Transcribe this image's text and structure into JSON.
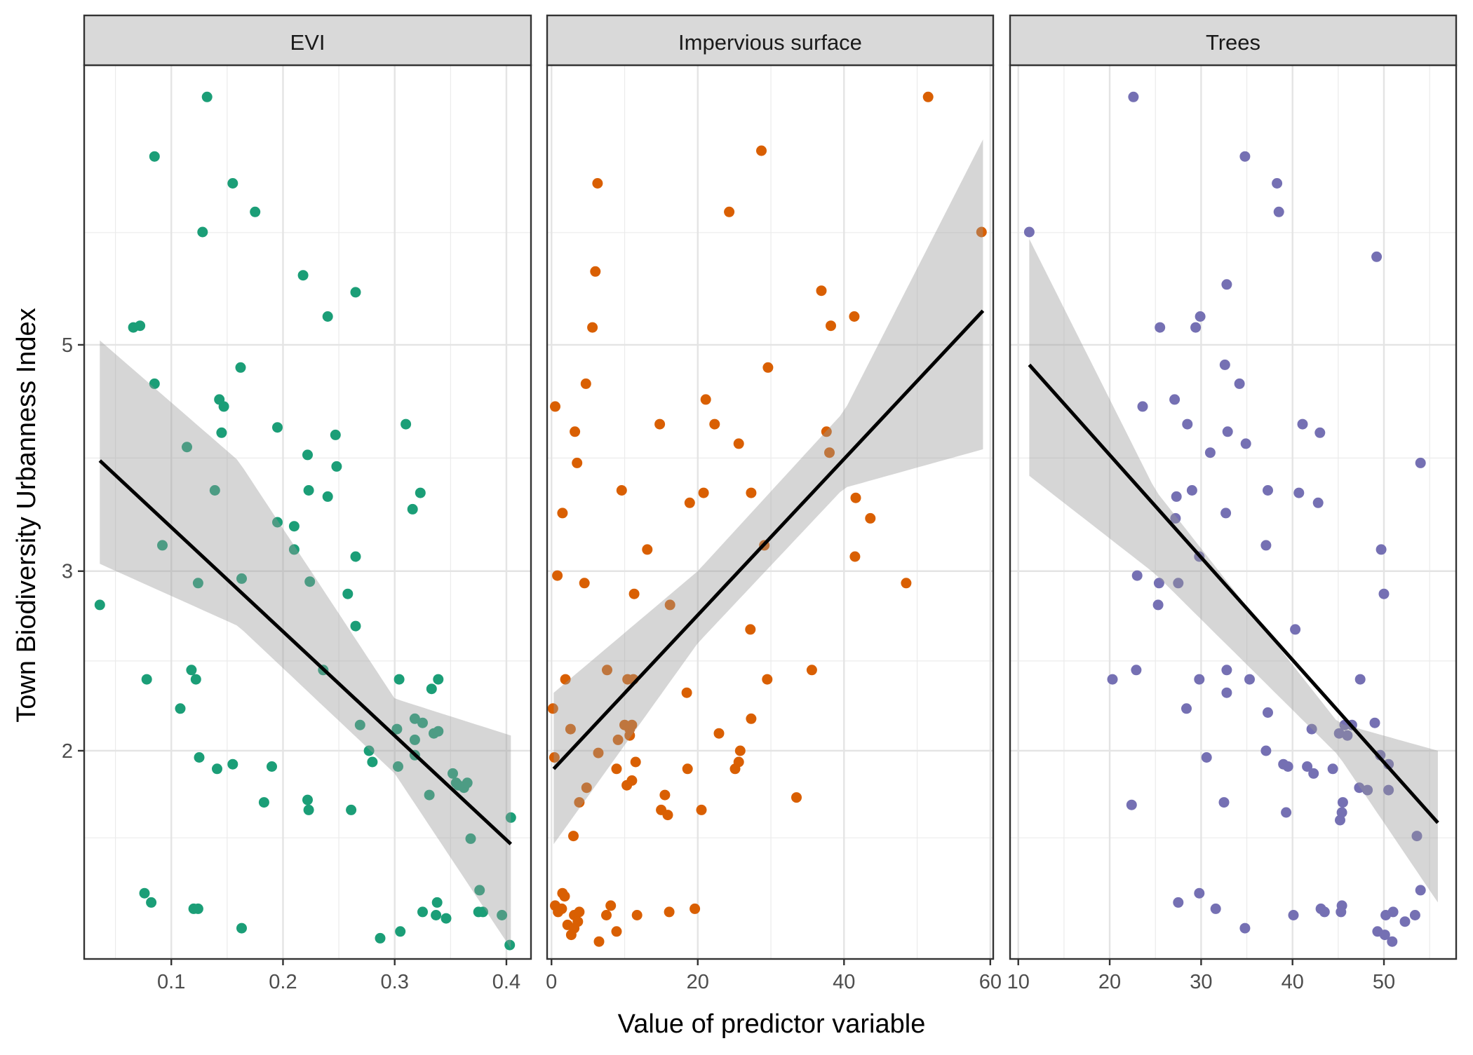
{
  "chart_data": {
    "type": "scatter",
    "ylabel": "Town Biodiversity Urbanness Index",
    "xlabel": "Value of predictor variable",
    "y_scale": "log",
    "y_ticks": [
      2,
      3,
      5
    ],
    "ylim": [
      1.25,
      9.4
    ],
    "grid": true,
    "panels": [
      {
        "title": "EVI",
        "color": "#1b9e77",
        "xlim": [
          0.022,
          0.422
        ],
        "x_ticks": [
          0.1,
          0.2,
          0.3,
          0.4
        ],
        "x_tick_labels": [
          "0.1",
          "0.2",
          "0.3",
          "0.4"
        ],
        "fit_line": [
          [
            0.036,
            3.85
          ],
          [
            0.404,
            1.62
          ]
        ],
        "ci_band": [
          [
            0.036,
            5.05,
            3.05
          ],
          [
            0.16,
            3.85,
            2.65
          ],
          [
            0.3,
            2.25,
            1.9
          ],
          [
            0.404,
            2.07,
            1.28
          ]
        ],
        "points": [
          [
            0.036,
            2.78
          ],
          [
            0.085,
            7.65
          ],
          [
            0.132,
            8.75
          ],
          [
            0.155,
            7.2
          ],
          [
            0.175,
            6.75
          ],
          [
            0.128,
            6.45
          ],
          [
            0.218,
            5.85
          ],
          [
            0.265,
            5.63
          ],
          [
            0.066,
            5.2
          ],
          [
            0.072,
            5.22
          ],
          [
            0.24,
            5.33
          ],
          [
            0.085,
            4.58
          ],
          [
            0.162,
            4.75
          ],
          [
            0.143,
            4.42
          ],
          [
            0.147,
            4.35
          ],
          [
            0.114,
            3.97
          ],
          [
            0.145,
            4.1
          ],
          [
            0.195,
            4.15
          ],
          [
            0.247,
            4.08
          ],
          [
            0.31,
            4.18
          ],
          [
            0.222,
            3.9
          ],
          [
            0.248,
            3.8
          ],
          [
            0.139,
            3.6
          ],
          [
            0.223,
            3.6
          ],
          [
            0.24,
            3.55
          ],
          [
            0.323,
            3.58
          ],
          [
            0.316,
            3.45
          ],
          [
            0.195,
            3.35
          ],
          [
            0.21,
            3.32
          ],
          [
            0.265,
            3.1
          ],
          [
            0.092,
            3.18
          ],
          [
            0.21,
            3.15
          ],
          [
            0.163,
            2.95
          ],
          [
            0.124,
            2.92
          ],
          [
            0.224,
            2.93
          ],
          [
            0.258,
            2.85
          ],
          [
            0.265,
            2.65
          ],
          [
            0.078,
            2.35
          ],
          [
            0.118,
            2.4
          ],
          [
            0.122,
            2.35
          ],
          [
            0.236,
            2.4
          ],
          [
            0.304,
            2.35
          ],
          [
            0.339,
            2.35
          ],
          [
            0.333,
            2.3
          ],
          [
            0.108,
            2.2
          ],
          [
            0.269,
            2.12
          ],
          [
            0.302,
            2.1
          ],
          [
            0.318,
            2.15
          ],
          [
            0.325,
            2.13
          ],
          [
            0.335,
            2.08
          ],
          [
            0.318,
            2.05
          ],
          [
            0.339,
            2.09
          ],
          [
            0.125,
            1.97
          ],
          [
            0.155,
            1.94
          ],
          [
            0.141,
            1.92
          ],
          [
            0.277,
            2.0
          ],
          [
            0.318,
            1.98
          ],
          [
            0.19,
            1.93
          ],
          [
            0.28,
            1.95
          ],
          [
            0.303,
            1.93
          ],
          [
            0.352,
            1.9
          ],
          [
            0.355,
            1.86
          ],
          [
            0.362,
            1.84
          ],
          [
            0.365,
            1.86
          ],
          [
            0.357,
            1.85
          ],
          [
            0.183,
            1.78
          ],
          [
            0.222,
            1.79
          ],
          [
            0.223,
            1.75
          ],
          [
            0.261,
            1.75
          ],
          [
            0.331,
            1.81
          ],
          [
            0.368,
            1.64
          ],
          [
            0.404,
            1.72
          ],
          [
            0.076,
            1.45
          ],
          [
            0.082,
            1.42
          ],
          [
            0.12,
            1.4
          ],
          [
            0.124,
            1.4
          ],
          [
            0.338,
            1.42
          ],
          [
            0.325,
            1.39
          ],
          [
            0.337,
            1.38
          ],
          [
            0.346,
            1.37
          ],
          [
            0.376,
            1.46
          ],
          [
            0.375,
            1.39
          ],
          [
            0.379,
            1.39
          ],
          [
            0.396,
            1.38
          ],
          [
            0.163,
            1.34
          ],
          [
            0.305,
            1.33
          ],
          [
            0.287,
            1.31
          ],
          [
            0.403,
            1.29
          ]
        ]
      },
      {
        "title": "Impervious surface",
        "color": "#d95f02",
        "xlim": [
          -0.6,
          60.4
        ],
        "x_ticks": [
          0,
          20,
          40,
          60
        ],
        "x_tick_labels": [
          "0",
          "20",
          "40",
          "60"
        ],
        "fit_line": [
          [
            0.3,
            1.92
          ],
          [
            59.0,
            5.4
          ]
        ],
        "ci_band": [
          [
            0.3,
            2.28,
            1.62
          ],
          [
            20.0,
            3.0,
            2.55
          ],
          [
            40.0,
            4.3,
            3.62
          ],
          [
            59.0,
            7.95,
            3.95
          ]
        ],
        "points": [
          [
            51.5,
            8.75
          ],
          [
            28.7,
            7.75
          ],
          [
            6.3,
            7.2
          ],
          [
            24.3,
            6.75
          ],
          [
            58.8,
            6.45
          ],
          [
            6.0,
            5.9
          ],
          [
            36.9,
            5.65
          ],
          [
            41.4,
            5.33
          ],
          [
            5.6,
            5.2
          ],
          [
            38.2,
            5.22
          ],
          [
            29.6,
            4.75
          ],
          [
            4.7,
            4.58
          ],
          [
            21.1,
            4.42
          ],
          [
            0.5,
            4.35
          ],
          [
            14.8,
            4.18
          ],
          [
            22.3,
            4.18
          ],
          [
            3.2,
            4.11
          ],
          [
            37.6,
            4.11
          ],
          [
            25.6,
            4.0
          ],
          [
            38.0,
            3.92
          ],
          [
            3.5,
            3.83
          ],
          [
            9.6,
            3.6
          ],
          [
            27.3,
            3.58
          ],
          [
            20.8,
            3.58
          ],
          [
            41.6,
            3.54
          ],
          [
            18.9,
            3.5
          ],
          [
            43.6,
            3.38
          ],
          [
            1.5,
            3.42
          ],
          [
            41.5,
            3.1
          ],
          [
            29.1,
            3.18
          ],
          [
            13.1,
            3.15
          ],
          [
            0.8,
            2.97
          ],
          [
            4.5,
            2.92
          ],
          [
            48.5,
            2.92
          ],
          [
            11.3,
            2.85
          ],
          [
            16.2,
            2.78
          ],
          [
            27.2,
            2.63
          ],
          [
            7.6,
            2.4
          ],
          [
            1.9,
            2.35
          ],
          [
            10.4,
            2.35
          ],
          [
            11.2,
            2.35
          ],
          [
            29.5,
            2.35
          ],
          [
            35.6,
            2.4
          ],
          [
            18.5,
            2.28
          ],
          [
            0.2,
            2.2
          ],
          [
            27.3,
            2.15
          ],
          [
            10.0,
            2.12
          ],
          [
            10.7,
            2.1
          ],
          [
            11.0,
            2.12
          ],
          [
            2.6,
            2.1
          ],
          [
            22.9,
            2.08
          ],
          [
            10.7,
            2.07
          ],
          [
            9.1,
            2.05
          ],
          [
            25.8,
            2.0
          ],
          [
            0.4,
            1.97
          ],
          [
            6.4,
            1.99
          ],
          [
            25.6,
            1.95
          ],
          [
            11.5,
            1.95
          ],
          [
            25.1,
            1.92
          ],
          [
            8.9,
            1.92
          ],
          [
            18.6,
            1.92
          ],
          [
            11.0,
            1.87
          ],
          [
            10.3,
            1.85
          ],
          [
            4.8,
            1.84
          ],
          [
            15.5,
            1.81
          ],
          [
            3.8,
            1.78
          ],
          [
            33.5,
            1.8
          ],
          [
            15.0,
            1.75
          ],
          [
            20.5,
            1.75
          ],
          [
            15.9,
            1.73
          ],
          [
            3.0,
            1.65
          ],
          [
            1.5,
            1.45
          ],
          [
            1.8,
            1.44
          ],
          [
            0.5,
            1.41
          ],
          [
            1.4,
            1.4
          ],
          [
            0.9,
            1.39
          ],
          [
            8.1,
            1.41
          ],
          [
            16.1,
            1.39
          ],
          [
            3.1,
            1.38
          ],
          [
            3.8,
            1.39
          ],
          [
            7.5,
            1.38
          ],
          [
            11.7,
            1.38
          ],
          [
            19.6,
            1.4
          ],
          [
            3.6,
            1.36
          ],
          [
            2.2,
            1.35
          ],
          [
            3.1,
            1.34
          ],
          [
            2.7,
            1.32
          ],
          [
            8.9,
            1.33
          ],
          [
            6.5,
            1.3
          ]
        ]
      },
      {
        "title": "Trees",
        "color": "#7570b3",
        "xlim": [
          9.1,
          57.9
        ],
        "x_ticks": [
          10,
          20,
          30,
          40,
          50
        ],
        "x_tick_labels": [
          "10",
          "20",
          "30",
          "40",
          "50"
        ],
        "fit_line": [
          [
            11.2,
            4.78
          ],
          [
            55.9,
            1.7
          ]
        ],
        "ci_band": [
          [
            11.2,
            6.35,
            3.72
          ],
          [
            25.0,
            3.6,
            2.98
          ],
          [
            45.0,
            2.13,
            1.98
          ],
          [
            55.9,
            2.0,
            1.42
          ]
        ],
        "points": [
          [
            22.6,
            8.75
          ],
          [
            34.8,
            7.65
          ],
          [
            38.3,
            7.2
          ],
          [
            11.2,
            6.45
          ],
          [
            38.5,
            6.75
          ],
          [
            49.2,
            6.1
          ],
          [
            32.8,
            5.73
          ],
          [
            29.9,
            5.33
          ],
          [
            25.5,
            5.2
          ],
          [
            29.4,
            5.2
          ],
          [
            32.6,
            4.78
          ],
          [
            34.2,
            4.58
          ],
          [
            23.6,
            4.35
          ],
          [
            27.1,
            4.42
          ],
          [
            28.5,
            4.18
          ],
          [
            41.1,
            4.18
          ],
          [
            32.9,
            4.11
          ],
          [
            43.0,
            4.1
          ],
          [
            34.9,
            4.0
          ],
          [
            31.0,
            3.92
          ],
          [
            54.0,
            3.83
          ],
          [
            29.0,
            3.6
          ],
          [
            37.3,
            3.6
          ],
          [
            40.7,
            3.58
          ],
          [
            27.3,
            3.55
          ],
          [
            42.8,
            3.5
          ],
          [
            32.7,
            3.42
          ],
          [
            27.2,
            3.38
          ],
          [
            29.8,
            3.1
          ],
          [
            37.1,
            3.18
          ],
          [
            49.7,
            3.15
          ],
          [
            23.0,
            2.97
          ],
          [
            25.4,
            2.92
          ],
          [
            27.5,
            2.92
          ],
          [
            50.0,
            2.85
          ],
          [
            25.3,
            2.78
          ],
          [
            40.3,
            2.63
          ],
          [
            20.3,
            2.35
          ],
          [
            22.9,
            2.4
          ],
          [
            29.8,
            2.35
          ],
          [
            32.8,
            2.4
          ],
          [
            35.3,
            2.35
          ],
          [
            47.4,
            2.35
          ],
          [
            32.8,
            2.28
          ],
          [
            28.4,
            2.2
          ],
          [
            37.3,
            2.18
          ],
          [
            42.1,
            2.1
          ],
          [
            45.7,
            2.12
          ],
          [
            46.5,
            2.12
          ],
          [
            49.0,
            2.13
          ],
          [
            46.0,
            2.07
          ],
          [
            45.1,
            2.08
          ],
          [
            37.1,
            2.0
          ],
          [
            30.6,
            1.97
          ],
          [
            49.6,
            1.98
          ],
          [
            39.0,
            1.94
          ],
          [
            39.5,
            1.93
          ],
          [
            41.6,
            1.93
          ],
          [
            50.5,
            1.94
          ],
          [
            42.3,
            1.9
          ],
          [
            44.4,
            1.92
          ],
          [
            47.3,
            1.84
          ],
          [
            48.2,
            1.83
          ],
          [
            50.5,
            1.83
          ],
          [
            32.5,
            1.78
          ],
          [
            45.5,
            1.78
          ],
          [
            22.4,
            1.77
          ],
          [
            39.3,
            1.74
          ],
          [
            45.4,
            1.74
          ],
          [
            45.2,
            1.71
          ],
          [
            53.6,
            1.65
          ],
          [
            27.5,
            1.42
          ],
          [
            29.8,
            1.45
          ],
          [
            31.6,
            1.4
          ],
          [
            54.0,
            1.46
          ],
          [
            40.1,
            1.38
          ],
          [
            43.1,
            1.4
          ],
          [
            43.5,
            1.39
          ],
          [
            45.4,
            1.41
          ],
          [
            45.3,
            1.39
          ],
          [
            50.2,
            1.38
          ],
          [
            51.0,
            1.39
          ],
          [
            53.4,
            1.38
          ],
          [
            52.3,
            1.36
          ],
          [
            34.8,
            1.34
          ],
          [
            49.3,
            1.33
          ],
          [
            50.1,
            1.32
          ],
          [
            50.9,
            1.3
          ]
        ]
      }
    ]
  }
}
